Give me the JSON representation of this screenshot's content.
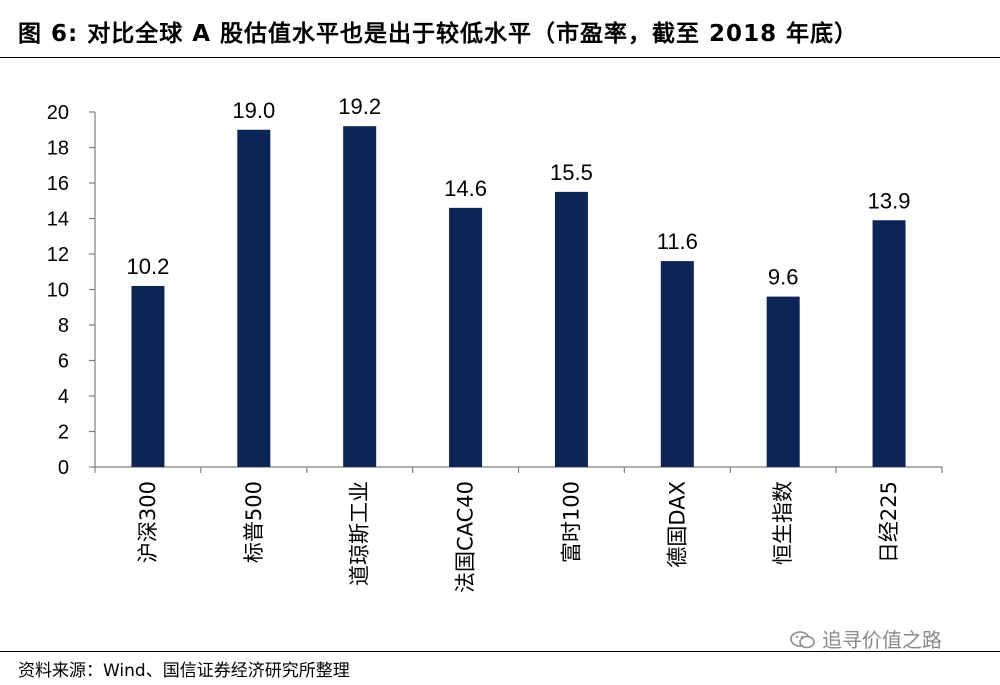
{
  "header": {
    "figure_label": "图 6:",
    "title": "对比全球 A 股估值水平也是出于较低水平（市盈率，截至 2018 年底）"
  },
  "footer": {
    "source": "资料来源：Wind、国信证券经济研究所整理"
  },
  "watermark": {
    "icon": "wechat-icon",
    "text": "追寻价值之路"
  },
  "colors": {
    "bar": "#0d2456",
    "axis": "#7f7f7f",
    "text": "#000000"
  },
  "chart_data": {
    "type": "bar",
    "title": "对比全球 A 股估值水平也是出于较低水平（市盈率，截至 2018 年底）",
    "xlabel": "",
    "ylabel": "",
    "categories": [
      "沪深300",
      "标普500",
      "道琼斯工业",
      "法国CAC40",
      "富时100",
      "德国DAX",
      "恒生指数",
      "日经225"
    ],
    "values": [
      10.2,
      19.0,
      19.2,
      14.6,
      15.5,
      11.6,
      9.6,
      13.9
    ],
    "value_labels": [
      "10.2",
      "19.0",
      "19.2",
      "14.6",
      "15.5",
      "11.6",
      "9.6",
      "13.9"
    ],
    "ylim": [
      0,
      20
    ],
    "yticks": [
      0,
      2,
      4,
      6,
      8,
      10,
      12,
      14,
      16,
      18,
      20
    ],
    "grid": false,
    "legend": "none"
  }
}
